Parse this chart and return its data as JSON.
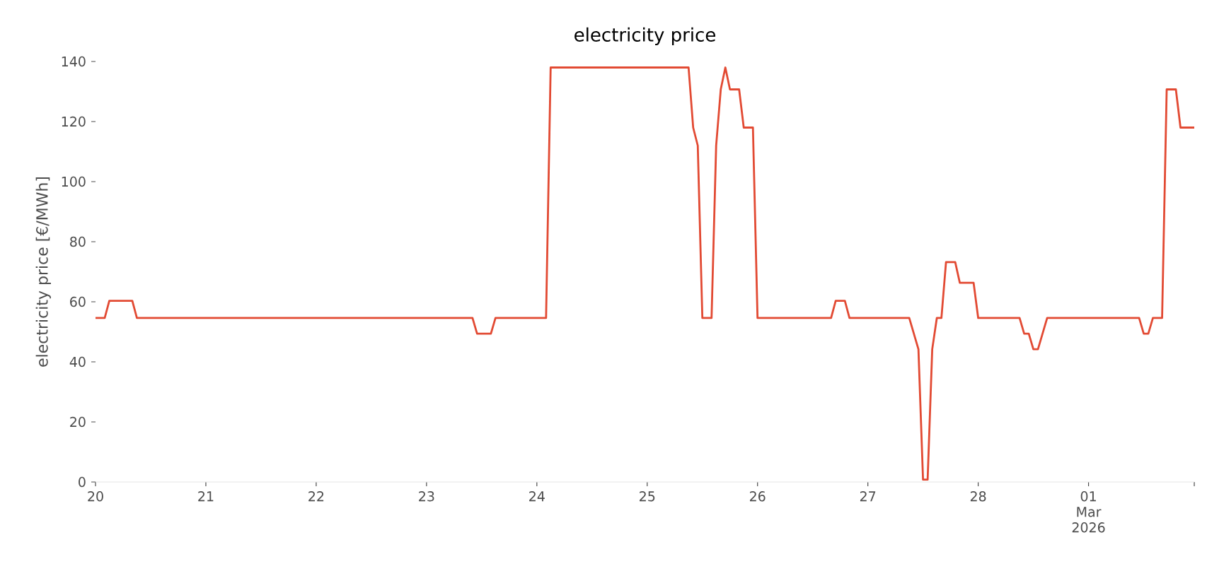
{
  "chart_data": {
    "type": "line",
    "title": "electricity price",
    "ylabel": "electricity price [€/MWh]",
    "x": [
      "2026-02-20T00:00",
      "2026-02-20T02:00",
      "2026-02-20T03:00",
      "2026-02-20T08:00",
      "2026-02-20T09:00",
      "2026-02-23T10:00",
      "2026-02-23T11:00",
      "2026-02-23T14:00",
      "2026-02-23T15:00",
      "2026-02-24T02:00",
      "2026-02-24T03:00",
      "2026-02-25T09:00",
      "2026-02-25T10:00",
      "2026-02-25T11:00",
      "2026-02-25T12:00",
      "2026-02-25T14:00",
      "2026-02-25T15:00",
      "2026-02-25T16:00",
      "2026-02-25T17:00",
      "2026-02-25T18:00",
      "2026-02-25T20:00",
      "2026-02-25T21:00",
      "2026-02-25T23:00",
      "2026-02-26T00:00",
      "2026-02-26T16:00",
      "2026-02-26T17:00",
      "2026-02-26T19:00",
      "2026-02-26T20:00",
      "2026-02-27T09:00",
      "2026-02-27T11:00",
      "2026-02-27T12:00",
      "2026-02-27T13:00",
      "2026-02-27T14:00",
      "2026-02-27T15:00",
      "2026-02-27T16:00",
      "2026-02-27T17:00",
      "2026-02-27T19:00",
      "2026-02-27T20:00",
      "2026-02-27T23:00",
      "2026-02-28T00:00",
      "2026-02-28T09:00",
      "2026-02-28T10:00",
      "2026-02-28T11:00",
      "2026-02-28T12:00",
      "2026-02-28T13:00",
      "2026-02-28T15:00",
      "2026-03-01T11:00",
      "2026-03-01T12:00",
      "2026-03-01T13:00",
      "2026-03-01T14:00",
      "2026-03-01T16:00",
      "2026-03-01T17:00",
      "2026-03-01T19:00",
      "2026-03-01T20:00",
      "2026-03-01T23:00"
    ],
    "series": [
      {
        "color": "#e24a33",
        "values": [
          54.6,
          54.6,
          60.3,
          60.3,
          54.6,
          54.6,
          49.4,
          49.4,
          54.6,
          54.6,
          138,
          138,
          118,
          112,
          54.6,
          54.6,
          112,
          130.7,
          138,
          130.7,
          130.7,
          118,
          118,
          54.6,
          54.6,
          60.3,
          60.3,
          54.6,
          54.6,
          44.2,
          0.8,
          0.8,
          44.2,
          54.6,
          54.6,
          73.2,
          73.2,
          66.3,
          66.3,
          54.6,
          54.6,
          49.4,
          49.4,
          44.2,
          44.2,
          54.6,
          54.6,
          49.4,
          49.4,
          54.6,
          54.6,
          130.7,
          130.7,
          118,
          118
        ]
      }
    ],
    "xticks": [
      {
        "value": "2026-02-20",
        "label": "20"
      },
      {
        "value": "2026-02-21",
        "label": "21"
      },
      {
        "value": "2026-02-22",
        "label": "22"
      },
      {
        "value": "2026-02-23",
        "label": "23"
      },
      {
        "value": "2026-02-24",
        "label": "24"
      },
      {
        "value": "2026-02-25",
        "label": "25"
      },
      {
        "value": "2026-02-26",
        "label": "26"
      },
      {
        "value": "2026-02-27",
        "label": "27"
      },
      {
        "value": "2026-02-28",
        "label": "28"
      },
      {
        "value": "2026-03-01",
        "label": "01\nMar\n2026"
      },
      {
        "value": "2026-03-01T23:00",
        "label": null
      }
    ],
    "xlim": [
      "2026-02-20T00:00",
      "2026-03-01T23:00"
    ],
    "ylim": [
      0,
      140
    ],
    "yticks": [
      0,
      20,
      40,
      60,
      80,
      100,
      120,
      140
    ],
    "grid": false,
    "marker": "none",
    "line_style": "solid"
  }
}
